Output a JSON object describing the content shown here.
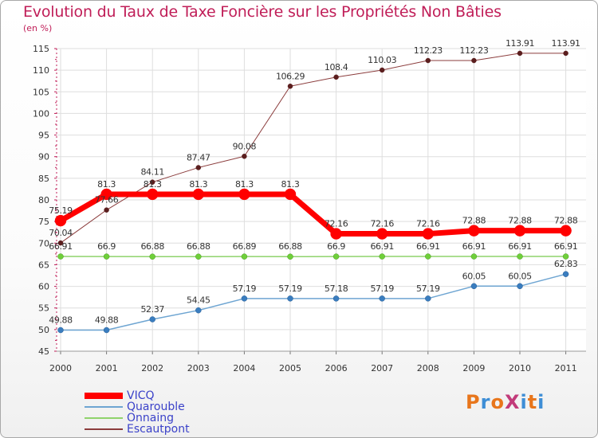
{
  "title": "Evolution du Taux de Taxe Foncière sur les Propriétés Non Bâties",
  "subtitle": "(en %)",
  "logo": {
    "text": "ProXiti",
    "colors": [
      "#e8761c",
      "#3e8ed6",
      "#e8761c",
      "#c23b7a",
      "#3e8ed6",
      "#e8761c",
      "#3e8ed6"
    ]
  },
  "chart_data": {
    "type": "line",
    "title": "Evolution du Taux de Taxe Foncière sur les Propriétés Non Bâties",
    "ylabel": "(en %)",
    "xlabel": "",
    "ylim": [
      45,
      115
    ],
    "yticks": [
      45,
      50,
      55,
      60,
      65,
      70,
      75,
      80,
      85,
      90,
      95,
      100,
      105,
      110,
      115
    ],
    "grid": true,
    "legend_position": "bottom-left",
    "categories": [
      "2000",
      "2001",
      "2002",
      "2003",
      "2004",
      "2005",
      "2006",
      "2007",
      "2008",
      "2009",
      "2010",
      "2011"
    ],
    "series": [
      {
        "name": "VICQ",
        "color": "#ff0000",
        "values": [
          75.19,
          81.3,
          81.3,
          81.3,
          81.3,
          81.3,
          72.16,
          72.16,
          72.16,
          72.88,
          72.88,
          72.88
        ],
        "labels": [
          "75.19",
          "81.3",
          "81.3",
          "81.3",
          "81.3",
          "81.3",
          "72.16",
          "72.16",
          "72.16",
          "72.88",
          "72.88",
          "72.88"
        ]
      },
      {
        "name": "Quarouble",
        "color": "#6ea5d2",
        "values": [
          49.88,
          49.88,
          52.37,
          54.45,
          57.19,
          57.19,
          57.18,
          57.19,
          57.19,
          60.05,
          60.05,
          62.83
        ],
        "labels": [
          "49.88",
          "49.88",
          "52.37",
          "54.45",
          "57.19",
          "57.19",
          "57.18",
          "57.19",
          "57.19",
          "60.05",
          "60.05",
          "62.83"
        ]
      },
      {
        "name": "Onnaing",
        "color": "#8fd36c",
        "values": [
          66.91,
          66.9,
          66.88,
          66.88,
          66.89,
          66.88,
          66.9,
          66.91,
          66.91,
          66.91,
          66.91,
          66.91
        ],
        "labels": [
          "66.91",
          "66.9",
          "66.88",
          "66.88",
          "66.89",
          "66.88",
          "66.9",
          "66.91",
          "66.91",
          "66.91",
          "66.91",
          "66.91"
        ]
      },
      {
        "name": "Escautpont",
        "color": "#8b3c3c",
        "values": [
          70.04,
          77.66,
          84.11,
          87.47,
          90.08,
          106.29,
          108.4,
          110.03,
          112.23,
          112.23,
          113.91,
          113.91
        ],
        "labels": [
          "70.04",
          "77.66",
          "84.11",
          "87.47",
          "90.08",
          "106.29",
          "108.4",
          "110.03",
          "112.23",
          "112.23",
          "113.91",
          "113.91"
        ]
      }
    ]
  }
}
